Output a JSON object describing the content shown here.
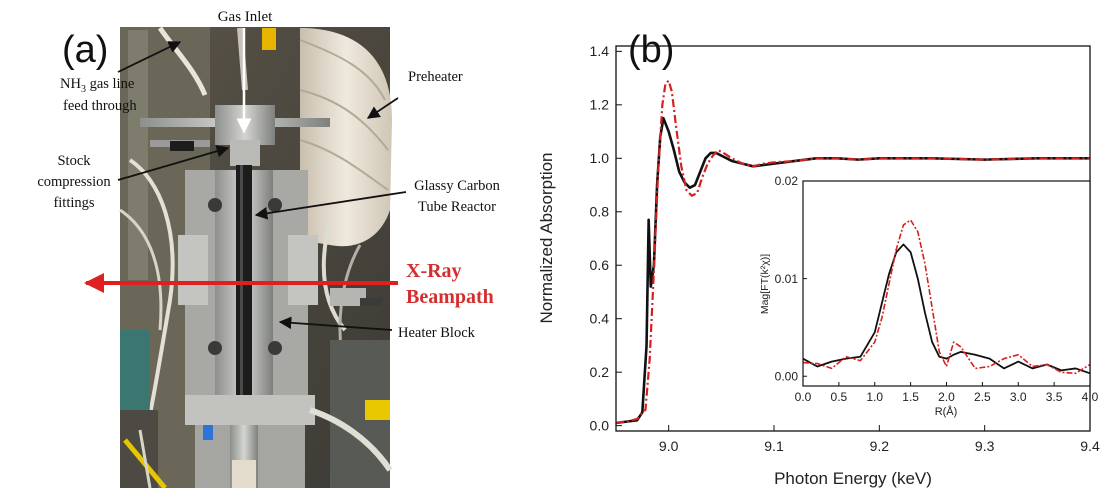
{
  "panel_a": {
    "label": "(a)",
    "annotations": {
      "gas_inlet": "Gas Inlet",
      "nh3_line1_pre": "NH",
      "nh3_line1_sub": "3",
      "nh3_line1_post": " gas line",
      "nh3_line2": "feed through",
      "preheater": "Preheater",
      "stock_line1": "Stock",
      "stock_line2": "compression",
      "stock_line3": "fittings",
      "glassy_line1": "Glassy Carbon",
      "glassy_line2": "Tube Reactor",
      "xray_line1": "X-Ray",
      "xray_line2": "Beampath",
      "heater": "Heater Block"
    },
    "colors": {
      "annotation_arrow": "#111111",
      "beam_arrow": "#e02020",
      "beam_text": "#d32f2f"
    }
  },
  "panel_b": {
    "label": "(b)",
    "chart_data": [
      {
        "type": "line",
        "title": "",
        "xlabel": "Photon Energy (keV)",
        "ylabel": "Normalized Absorption",
        "xlim": [
          8.95,
          9.4
        ],
        "ylim": [
          -0.02,
          1.42
        ],
        "xticks": [
          9.0,
          9.1,
          9.2,
          9.3,
          9.4
        ],
        "xtick_labels": [
          "9.0",
          "9.1",
          "9.2",
          "9.3",
          "9.4"
        ],
        "yticks": [
          0.0,
          0.2,
          0.4,
          0.6,
          0.8,
          1.0,
          1.2,
          1.4
        ],
        "ytick_labels": [
          "0.0",
          "0.2",
          "0.4",
          "0.6",
          "0.8",
          "1.0",
          "1.2",
          "1.4"
        ],
        "grid": false,
        "series": [
          {
            "color": "#111111",
            "style": "solid",
            "x": [
              8.95,
              8.96,
              8.97,
              8.975,
              8.979,
              8.981,
              8.983,
              8.986,
              8.989,
              8.992,
              8.995,
              8.998,
              9.0,
              9.005,
              9.01,
              9.015,
              9.02,
              9.025,
              9.03,
              9.035,
              9.04,
              9.045,
              9.05,
              9.06,
              9.07,
              9.08,
              9.09,
              9.1,
              9.12,
              9.14,
              9.16,
              9.18,
              9.2,
              9.25,
              9.3,
              9.35,
              9.4
            ],
            "y": [
              0.01,
              0.015,
              0.02,
              0.05,
              0.3,
              0.77,
              0.52,
              0.6,
              0.9,
              1.08,
              1.15,
              1.12,
              1.1,
              1.03,
              0.95,
              0.91,
              0.89,
              0.9,
              0.95,
              1.0,
              1.02,
              1.02,
              1.01,
              0.99,
              0.98,
              0.97,
              0.975,
              0.98,
              0.99,
              1.0,
              1.0,
              0.995,
              1.0,
              1.0,
              0.995,
              1.0,
              1.0
            ]
          },
          {
            "color": "#d62020",
            "style": "dash-dot",
            "x": [
              8.95,
              8.96,
              8.97,
              8.978,
              8.982,
              8.986,
              8.99,
              8.994,
              8.997,
              9.0,
              9.003,
              9.007,
              9.012,
              9.017,
              9.022,
              9.027,
              9.032,
              9.037,
              9.042,
              9.047,
              9.052,
              9.06,
              9.07,
              9.08,
              9.09,
              9.1,
              9.12,
              9.14,
              9.16,
              9.18,
              9.2,
              9.25,
              9.3,
              9.35,
              9.4
            ],
            "y": [
              0.01,
              0.015,
              0.025,
              0.06,
              0.25,
              0.58,
              0.95,
              1.2,
              1.28,
              1.29,
              1.25,
              1.12,
              0.97,
              0.88,
              0.86,
              0.87,
              0.93,
              0.98,
              1.01,
              1.03,
              1.02,
              1.0,
              0.98,
              0.97,
              0.98,
              0.985,
              0.99,
              1.0,
              1.0,
              0.995,
              1.0,
              1.0,
              0.995,
              1.0,
              1.0
            ]
          }
        ]
      },
      {
        "type": "line",
        "title": "",
        "xlabel": "R(Å)",
        "ylabel": "Mag[FT(k²χ)]",
        "xlim": [
          0.0,
          4.0
        ],
        "ylim": [
          -0.001,
          0.02
        ],
        "xticks": [
          0.0,
          0.5,
          1.0,
          1.5,
          2.0,
          2.5,
          3.0,
          3.5,
          4.0
        ],
        "xtick_labels": [
          "0.0",
          "0.5",
          "1.0",
          "1.5",
          "2.0",
          "2.5",
          "3.0",
          "3.5",
          "4.0"
        ],
        "yticks": [
          0.0,
          0.01,
          0.02
        ],
        "ytick_labels": [
          "0.00",
          "0.01",
          "0.02"
        ],
        "grid": false,
        "series": [
          {
            "color": "#111111",
            "style": "solid",
            "x": [
              0.0,
              0.2,
              0.4,
              0.6,
              0.8,
              1.0,
              1.1,
              1.2,
              1.3,
              1.4,
              1.5,
              1.6,
              1.7,
              1.8,
              1.9,
              2.0,
              2.1,
              2.2,
              2.4,
              2.6,
              2.8,
              3.0,
              3.2,
              3.4,
              3.6,
              3.8,
              4.0
            ],
            "y": [
              0.0018,
              0.001,
              0.0015,
              0.0018,
              0.002,
              0.0045,
              0.0075,
              0.0105,
              0.0127,
              0.0135,
              0.0127,
              0.01,
              0.0065,
              0.0035,
              0.002,
              0.0018,
              0.0022,
              0.0025,
              0.0022,
              0.0018,
              0.0008,
              0.0015,
              0.0008,
              0.0012,
              0.0006,
              0.0008,
              0.0003
            ]
          },
          {
            "color": "#d62020",
            "style": "dash-dot",
            "x": [
              0.0,
              0.2,
              0.4,
              0.6,
              0.8,
              1.0,
              1.1,
              1.2,
              1.3,
              1.4,
              1.5,
              1.6,
              1.7,
              1.8,
              1.9,
              2.0,
              2.1,
              2.2,
              2.4,
              2.6,
              2.8,
              3.0,
              3.2,
              3.4,
              3.6,
              3.8,
              4.0
            ],
            "y": [
              0.0014,
              0.0013,
              0.0008,
              0.002,
              0.0016,
              0.0035,
              0.006,
              0.0095,
              0.013,
              0.0155,
              0.016,
              0.0148,
              0.0115,
              0.007,
              0.0025,
              0.001,
              0.0035,
              0.003,
              0.0008,
              0.001,
              0.0018,
              0.0022,
              0.001,
              0.0012,
              0.0004,
              0.0003,
              0.0012
            ]
          }
        ]
      }
    ]
  }
}
